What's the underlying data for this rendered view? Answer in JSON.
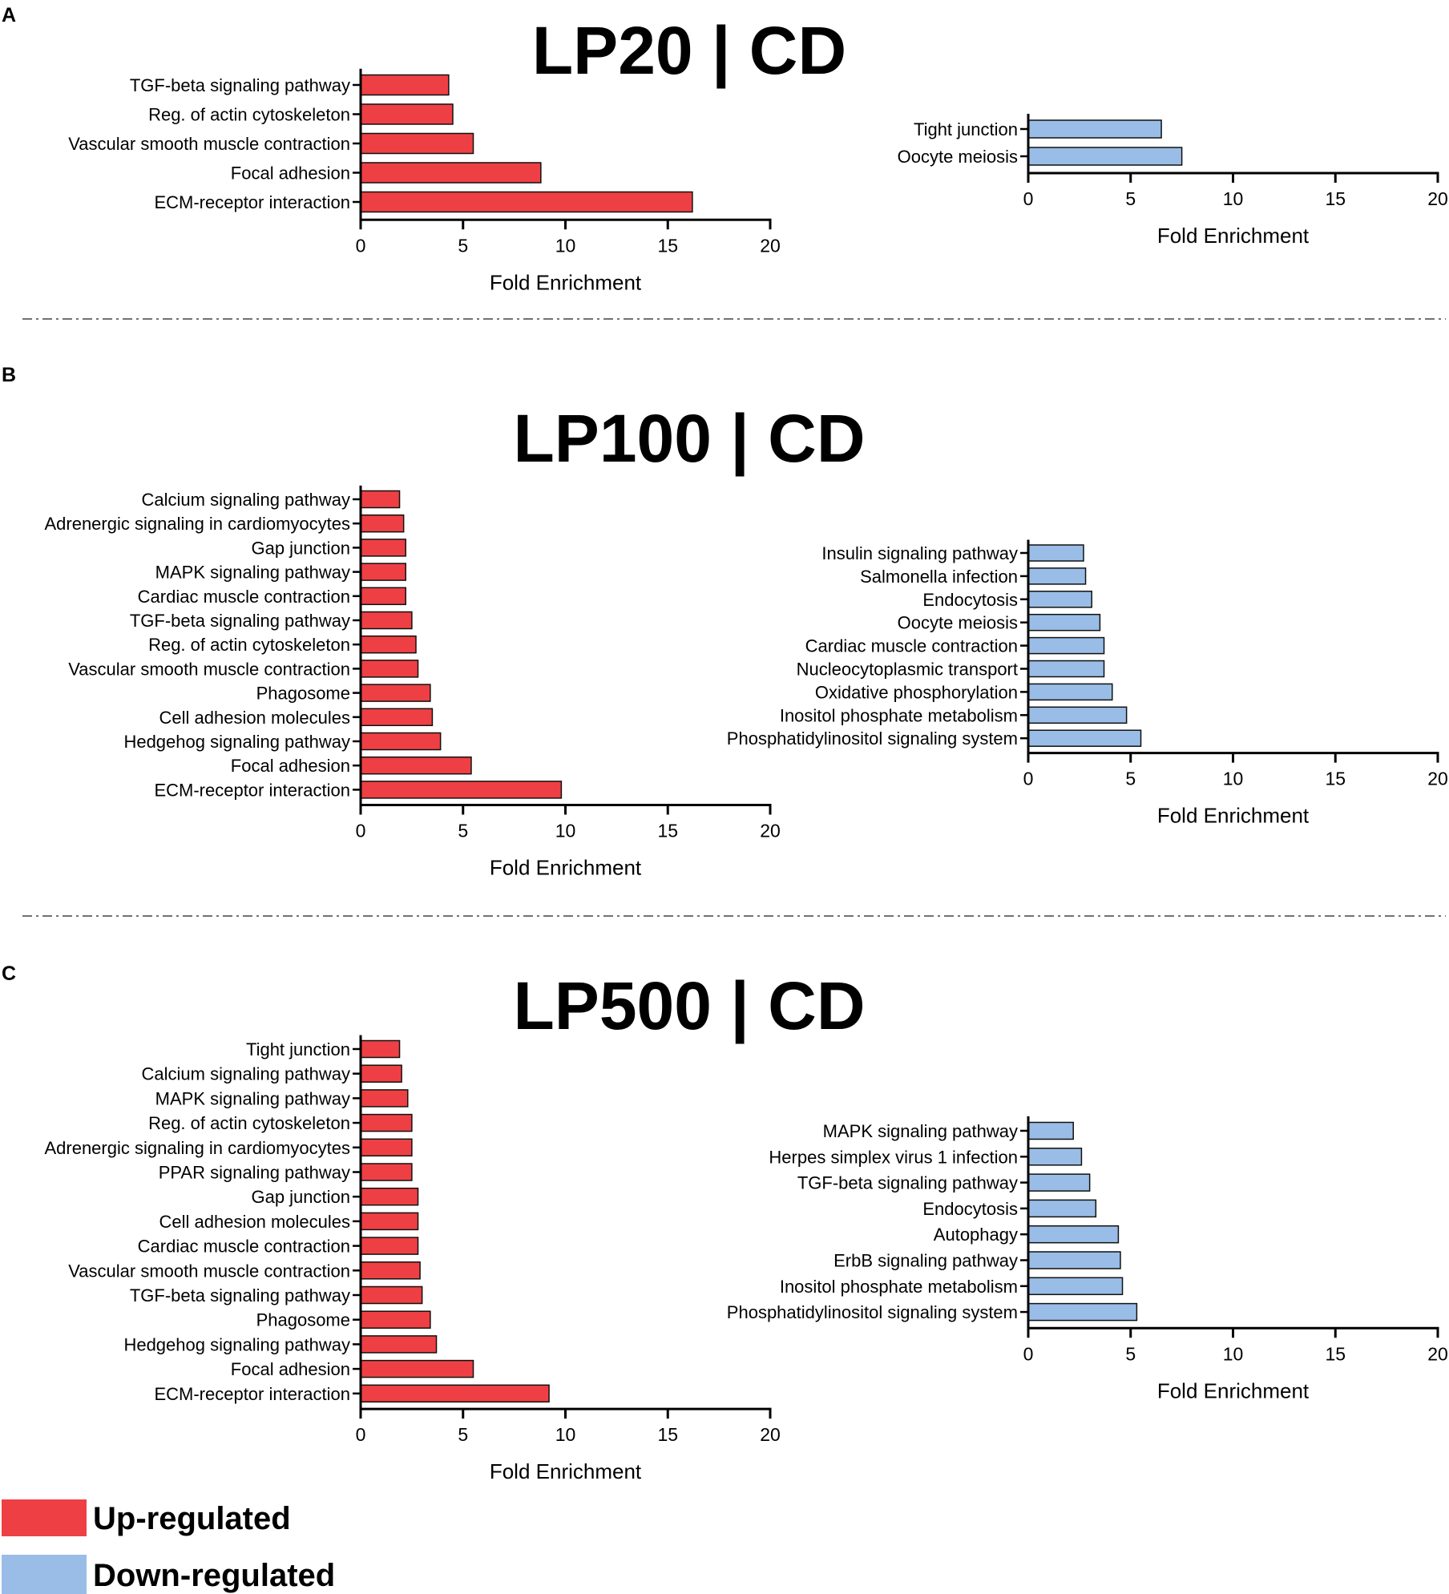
{
  "figure": {
    "legend": {
      "up": "Up-regulated",
      "down": "Down-regulated"
    },
    "colors": {
      "up": "#ee4044",
      "down": "#99bde6",
      "axis": "#000000"
    }
  },
  "chart_data": [
    {
      "panel": "A",
      "title": "LP20 | CD",
      "regulation": "up",
      "type": "bar",
      "orientation": "horizontal",
      "categories": [
        "TGF-beta signaling pathway",
        "Reg. of actin cytoskeleton",
        "Vascular smooth muscle contraction",
        "Focal adhesion",
        "ECM-receptor interaction"
      ],
      "values": [
        4.3,
        4.5,
        5.5,
        8.8,
        16.2
      ],
      "xlabel": "Fold Enrichment",
      "xlim": [
        0,
        20
      ],
      "xticks": [
        0,
        5,
        10,
        15,
        20
      ]
    },
    {
      "panel": "A",
      "regulation": "down",
      "type": "bar",
      "orientation": "horizontal",
      "categories": [
        "Tight junction",
        "Oocyte meiosis"
      ],
      "values": [
        6.5,
        7.5
      ],
      "xlabel": "Fold Enrichment",
      "xlim": [
        0,
        20
      ],
      "xticks": [
        0,
        5,
        10,
        15,
        20
      ]
    },
    {
      "panel": "B",
      "title": "LP100 | CD",
      "regulation": "up",
      "type": "bar",
      "orientation": "horizontal",
      "categories": [
        "Calcium signaling pathway",
        "Adrenergic signaling in cardiomyocytes",
        "Gap junction",
        "MAPK signaling pathway",
        "Cardiac muscle contraction",
        "TGF-beta signaling pathway",
        "Reg. of actin cytoskeleton",
        "Vascular smooth muscle contraction",
        "Phagosome",
        "Cell adhesion molecules",
        "Hedgehog signaling pathway",
        "Focal adhesion",
        "ECM-receptor interaction"
      ],
      "values": [
        1.9,
        2.1,
        2.2,
        2.2,
        2.2,
        2.5,
        2.7,
        2.8,
        3.4,
        3.5,
        3.9,
        5.4,
        9.8
      ],
      "xlabel": "Fold Enrichment",
      "xlim": [
        0,
        20
      ],
      "xticks": [
        0,
        5,
        10,
        15,
        20
      ]
    },
    {
      "panel": "B",
      "regulation": "down",
      "type": "bar",
      "orientation": "horizontal",
      "categories": [
        "Insulin signaling pathway",
        "Salmonella infection",
        "Endocytosis",
        "Oocyte meiosis",
        "Cardiac muscle contraction",
        "Nucleocytoplasmic transport",
        "Oxidative phosphorylation",
        "Inositol phosphate metabolism",
        "Phosphatidylinositol signaling system"
      ],
      "values": [
        2.7,
        2.8,
        3.1,
        3.5,
        3.7,
        3.7,
        4.1,
        4.8,
        5.5
      ],
      "xlabel": "Fold Enrichment",
      "xlim": [
        0,
        20
      ],
      "xticks": [
        0,
        5,
        10,
        15,
        20
      ]
    },
    {
      "panel": "C",
      "title": "LP500 | CD",
      "regulation": "up",
      "type": "bar",
      "orientation": "horizontal",
      "categories": [
        "Tight junction",
        "Calcium signaling pathway",
        "MAPK signaling pathway",
        "Reg. of actin cytoskeleton",
        "Adrenergic signaling in cardiomyocytes",
        "PPAR signaling pathway",
        "Gap junction",
        "Cell adhesion molecules",
        "Cardiac muscle contraction",
        "Vascular smooth muscle contraction",
        "TGF-beta signaling pathway",
        "Phagosome",
        "Hedgehog signaling pathway",
        "Focal adhesion",
        "ECM-receptor interaction"
      ],
      "values": [
        1.9,
        2.0,
        2.3,
        2.5,
        2.5,
        2.5,
        2.8,
        2.8,
        2.8,
        2.9,
        3.0,
        3.4,
        3.7,
        5.5,
        9.2
      ],
      "xlabel": "Fold Enrichment",
      "xlim": [
        0,
        20
      ],
      "xticks": [
        0,
        5,
        10,
        15,
        20
      ]
    },
    {
      "panel": "C",
      "regulation": "down",
      "type": "bar",
      "orientation": "horizontal",
      "categories": [
        "MAPK signaling pathway",
        "Herpes simplex virus 1 infection",
        "TGF-beta signaling pathway",
        "Endocytosis",
        "Autophagy",
        "ErbB signaling pathway",
        "Inositol phosphate metabolism",
        "Phosphatidylinositol signaling system"
      ],
      "values": [
        2.2,
        2.6,
        3.0,
        3.3,
        4.4,
        4.5,
        4.6,
        5.3
      ],
      "xlabel": "Fold Enrichment",
      "xlim": [
        0,
        20
      ],
      "xticks": [
        0,
        5,
        10,
        15,
        20
      ]
    }
  ]
}
